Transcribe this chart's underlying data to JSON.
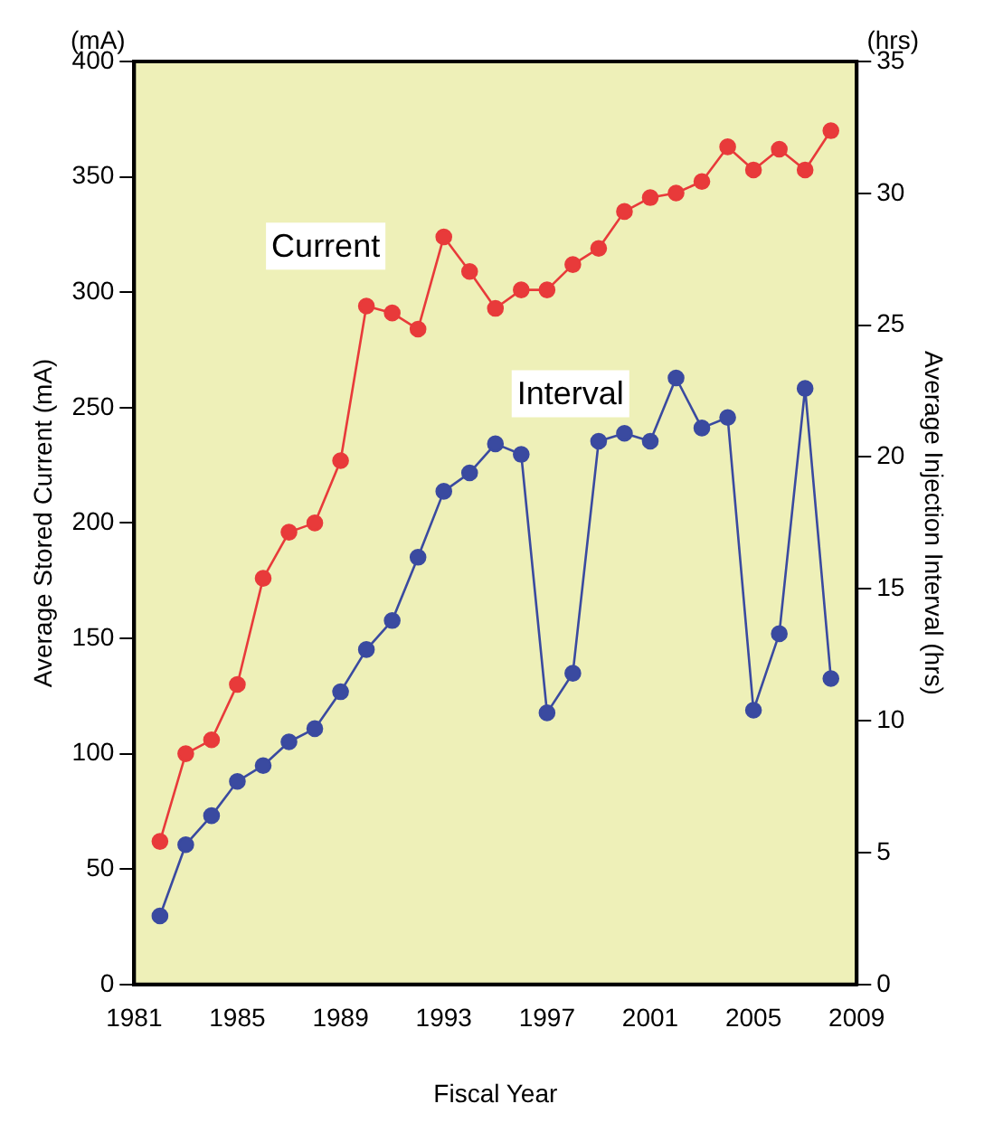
{
  "chart_data": {
    "type": "line",
    "xlabel": "Fiscal Year",
    "ylabel": "Average Stored Current (mA)",
    "y2label": "Average Injection Interval (hrs)",
    "annotations": [
      "(mA)",
      "(hrs)"
    ],
    "x": [
      1982,
      1983,
      1984,
      1985,
      1986,
      1987,
      1988,
      1989,
      1990,
      1991,
      1992,
      1993,
      1994,
      1995,
      1996,
      1997,
      1998,
      1999,
      2000,
      2001,
      2002,
      2003,
      2004,
      2005,
      2006,
      2007,
      2008
    ],
    "series": [
      {
        "name": "Current",
        "color": "#e83a3a",
        "values": [
          62,
          100,
          106,
          130,
          176,
          196,
          200,
          227,
          294,
          291,
          284,
          324,
          309,
          293,
          301,
          301,
          312,
          319,
          335,
          341,
          343,
          348,
          363,
          353,
          362,
          353,
          370
        ]
      },
      {
        "name": "Interval",
        "color": "#3a4aa0",
        "axis": "y2",
        "values": [
          2.6,
          5.3,
          6.4,
          7.7,
          8.3,
          9.2,
          9.7,
          11.1,
          12.7,
          13.8,
          16.2,
          18.7,
          19.4,
          20.5,
          20.1,
          10.3,
          11.8,
          20.6,
          20.9,
          20.6,
          23.0,
          21.1,
          21.5,
          10.4,
          13.3,
          22.6,
          11.6
        ]
      }
    ],
    "xlim": [
      1981,
      2009
    ],
    "xticks": [
      1981,
      1985,
      1989,
      1993,
      1997,
      2001,
      2005,
      2009
    ],
    "ylim": [
      0,
      400
    ],
    "yticks": [
      0,
      50,
      100,
      150,
      200,
      250,
      300,
      350,
      400
    ],
    "y2lim": [
      0,
      35
    ],
    "y2ticks": [
      0,
      5,
      10,
      15,
      20,
      25,
      30,
      35
    ],
    "grid": false,
    "legend": false,
    "marker": "circle",
    "line_style": "solid"
  }
}
